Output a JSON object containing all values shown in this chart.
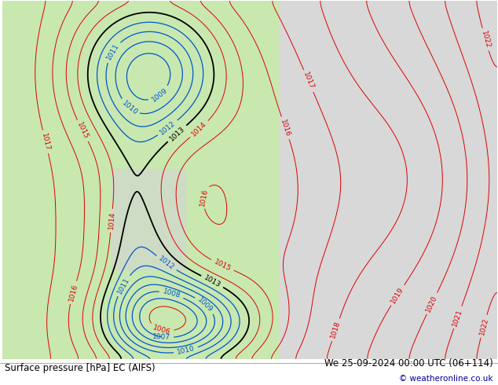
{
  "title_left": "Surface pressure [hPa] EC (AIFS)",
  "title_right": "We 25-09-2024 00:00 UTC (06+114)",
  "copyright": "© weatheronline.co.uk",
  "bg_color_land": "#c8e8b0",
  "bg_color_ocean_left": "#d8d8d8",
  "bg_color_ocean_right": "#e0e0e0",
  "contour_color_black": "#000000",
  "contour_color_red": "#dd0000",
  "contour_color_blue": "#0055cc",
  "label_fontsize": 6.5,
  "footer_fontsize": 8.5,
  "levels_black": [
    1013
  ],
  "levels_blue": [
    1007,
    1008,
    1009,
    1010,
    1011,
    1012
  ],
  "levels_red_min": 1013,
  "levels_red_max": 1022,
  "lw_black": 1.3,
  "lw_blue": 0.9,
  "lw_red": 0.7
}
